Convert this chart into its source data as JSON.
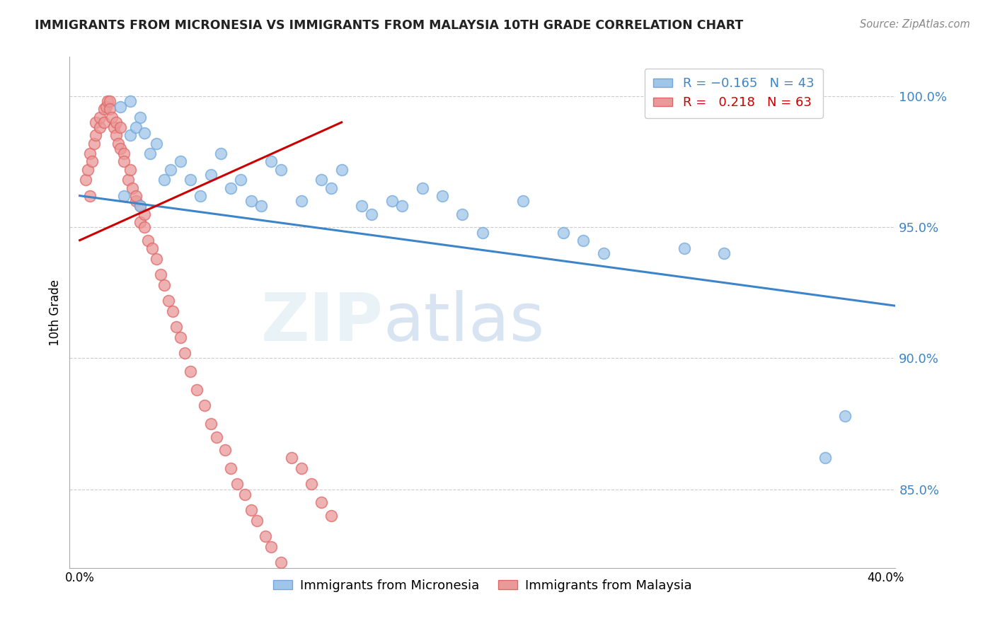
{
  "title": "IMMIGRANTS FROM MICRONESIA VS IMMIGRANTS FROM MALAYSIA 10TH GRADE CORRELATION CHART",
  "source": "Source: ZipAtlas.com",
  "ylabel": "10th Grade",
  "y_ticks": [
    0.85,
    0.9,
    0.95,
    1.0
  ],
  "y_tick_labels": [
    "85.0%",
    "90.0%",
    "95.0%",
    "100.0%"
  ],
  "x_ticks": [
    0.0,
    0.1,
    0.2,
    0.3,
    0.4
  ],
  "x_tick_labels": [
    "0.0%",
    "",
    "",
    "",
    "40.0%"
  ],
  "xlim": [
    -0.005,
    0.405
  ],
  "ylim": [
    0.82,
    1.015
  ],
  "blue_color": "#9fc5e8",
  "pink_color": "#ea9999",
  "blue_line_color": "#3d85c8",
  "pink_line_color": "#cc0000",
  "blue_scatter_edge": "#6fa8dc",
  "pink_scatter_edge": "#e06666",
  "micronesia_x": [
    0.02,
    0.025,
    0.03,
    0.025,
    0.028,
    0.032,
    0.022,
    0.03,
    0.035,
    0.038,
    0.042,
    0.045,
    0.05,
    0.055,
    0.06,
    0.065,
    0.07,
    0.075,
    0.08,
    0.085,
    0.09,
    0.095,
    0.1,
    0.11,
    0.12,
    0.125,
    0.13,
    0.14,
    0.145,
    0.155,
    0.16,
    0.17,
    0.18,
    0.19,
    0.2,
    0.22,
    0.24,
    0.25,
    0.26,
    0.3,
    0.32,
    0.37,
    0.38
  ],
  "micronesia_y": [
    0.996,
    0.998,
    0.992,
    0.985,
    0.988,
    0.986,
    0.962,
    0.958,
    0.978,
    0.982,
    0.968,
    0.972,
    0.975,
    0.968,
    0.962,
    0.97,
    0.978,
    0.965,
    0.968,
    0.96,
    0.958,
    0.975,
    0.972,
    0.96,
    0.968,
    0.965,
    0.972,
    0.958,
    0.955,
    0.96,
    0.958,
    0.965,
    0.962,
    0.955,
    0.948,
    0.96,
    0.948,
    0.945,
    0.94,
    0.942,
    0.94,
    0.862,
    0.878
  ],
  "malaysia_x": [
    0.003,
    0.004,
    0.005,
    0.005,
    0.006,
    0.007,
    0.008,
    0.008,
    0.01,
    0.01,
    0.012,
    0.012,
    0.013,
    0.014,
    0.015,
    0.015,
    0.016,
    0.017,
    0.018,
    0.018,
    0.019,
    0.02,
    0.02,
    0.022,
    0.022,
    0.024,
    0.025,
    0.026,
    0.028,
    0.028,
    0.03,
    0.03,
    0.032,
    0.032,
    0.034,
    0.036,
    0.038,
    0.04,
    0.042,
    0.044,
    0.046,
    0.048,
    0.05,
    0.052,
    0.055,
    0.058,
    0.062,
    0.065,
    0.068,
    0.072,
    0.075,
    0.078,
    0.082,
    0.085,
    0.088,
    0.092,
    0.095,
    0.1,
    0.105,
    0.11,
    0.115,
    0.12,
    0.125
  ],
  "malaysia_y": [
    0.968,
    0.972,
    0.962,
    0.978,
    0.975,
    0.982,
    0.985,
    0.99,
    0.988,
    0.992,
    0.99,
    0.995,
    0.996,
    0.998,
    0.998,
    0.995,
    0.992,
    0.988,
    0.99,
    0.985,
    0.982,
    0.988,
    0.98,
    0.978,
    0.975,
    0.968,
    0.972,
    0.965,
    0.96,
    0.962,
    0.958,
    0.952,
    0.95,
    0.955,
    0.945,
    0.942,
    0.938,
    0.932,
    0.928,
    0.922,
    0.918,
    0.912,
    0.908,
    0.902,
    0.895,
    0.888,
    0.882,
    0.875,
    0.87,
    0.865,
    0.858,
    0.852,
    0.848,
    0.842,
    0.838,
    0.832,
    0.828,
    0.822,
    0.862,
    0.858,
    0.852,
    0.845,
    0.84
  ],
  "blue_trendline_x": [
    0.0,
    0.405
  ],
  "blue_trendline_y": [
    0.962,
    0.92
  ],
  "pink_trendline_x": [
    0.0,
    0.13
  ],
  "pink_trendline_y": [
    0.945,
    0.99
  ]
}
